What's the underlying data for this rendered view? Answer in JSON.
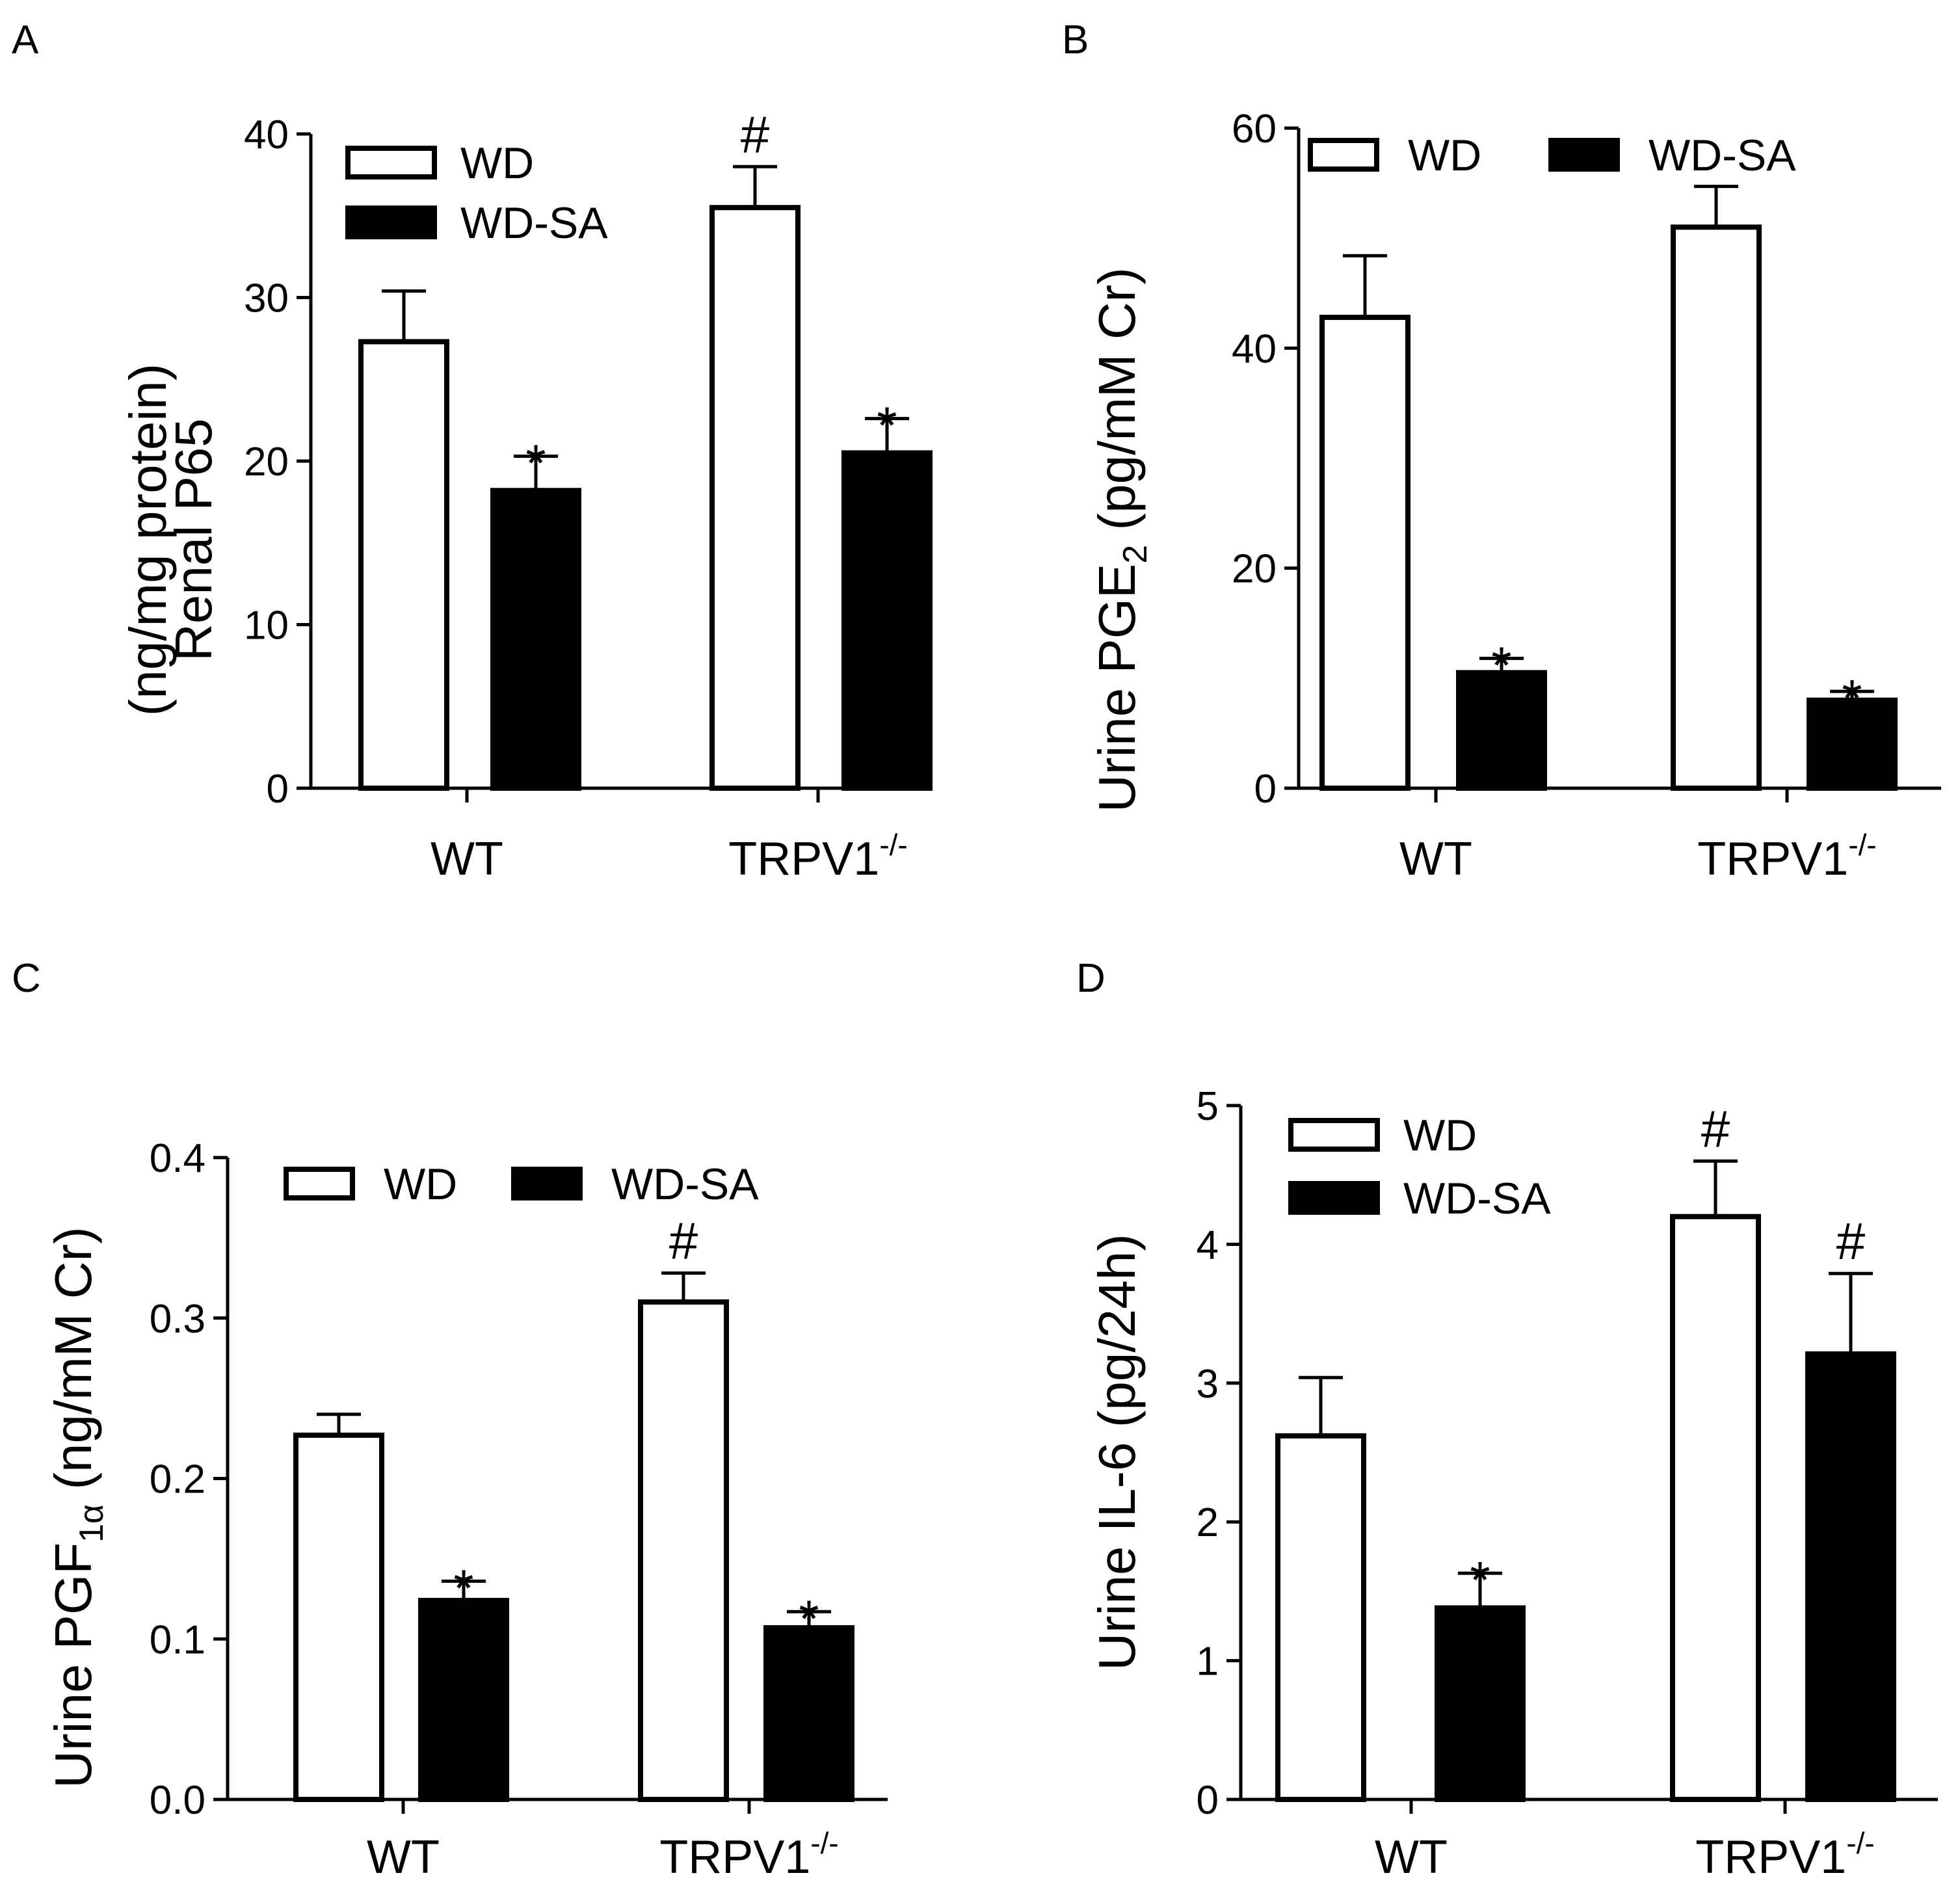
{
  "figure": {
    "panels": [
      {
        "id": "A",
        "letter": "A",
        "ylabel_lines": [
          "Renal P65",
          "(ng/mg protein)"
        ],
        "legend": [
          "WD",
          "WD-SA"
        ],
        "legend_layout": "vertical",
        "categories": [
          "WT",
          "TRPV1"
        ],
        "category_sup": [
          "",
          "-/-"
        ],
        "yticks": [
          "0",
          "10",
          "20",
          "30",
          "40"
        ]
      },
      {
        "id": "B",
        "letter": "B",
        "ylabel_parts": [
          [
            "Urine PGE",
            ""
          ],
          [
            "2",
            "sub"
          ],
          [
            " (pg/mM Cr)",
            ""
          ]
        ],
        "legend": [
          "WD",
          "WD-SA"
        ],
        "legend_layout": "horizontal",
        "categories": [
          "WT",
          "TRPV1"
        ],
        "category_sup": [
          "",
          "-/-"
        ],
        "yticks": [
          "0",
          "20",
          "40",
          "60"
        ]
      },
      {
        "id": "C",
        "letter": "C",
        "ylabel_parts": [
          [
            "Urine PGF",
            ""
          ],
          [
            "1α",
            "sub"
          ],
          [
            " (ng/mM Cr)",
            ""
          ]
        ],
        "legend": [
          "WD",
          "WD-SA"
        ],
        "legend_layout": "horizontal",
        "categories": [
          "WT",
          "TRPV1"
        ],
        "category_sup": [
          "",
          "-/-"
        ],
        "yticks": [
          "0.0",
          "0.1",
          "0.2",
          "0.3",
          "0.4"
        ]
      },
      {
        "id": "D",
        "letter": "D",
        "ylabel_lines": [
          "Urine IL-6 (pg/24h)"
        ],
        "legend": [
          "WD",
          "WD-SA"
        ],
        "legend_layout": "vertical",
        "categories": [
          "WT",
          "TRPV1"
        ],
        "category_sup": [
          "",
          "-/-"
        ],
        "yticks": [
          "0",
          "1",
          "2",
          "3",
          "4",
          "5"
        ]
      }
    ]
  },
  "chart_data": [
    {
      "type": "bar",
      "panel": "A",
      "ylabel": "Renal P65 (ng/mg protein)",
      "categories": [
        "WT",
        "TRPV1-/-"
      ],
      "ylim": [
        0,
        40
      ],
      "series": [
        {
          "name": "WD",
          "fill": "#ffffff",
          "values": [
            27.3,
            35.5
          ],
          "errors": [
            3.1,
            2.5
          ],
          "marks": [
            "",
            "#"
          ]
        },
        {
          "name": "WD-SA",
          "fill": "#000000",
          "values": [
            18.2,
            20.5
          ],
          "errors": [
            2.1,
            2.1
          ],
          "marks": [
            "*",
            "*"
          ]
        }
      ]
    },
    {
      "type": "bar",
      "panel": "B",
      "ylabel": "Urine PGE2 (pg/mM Cr)",
      "categories": [
        "WT",
        "TRPV1-/-"
      ],
      "ylim": [
        0,
        60
      ],
      "series": [
        {
          "name": "WD",
          "fill": "#ffffff",
          "values": [
            42.8,
            51.0
          ],
          "errors": [
            5.6,
            3.7
          ],
          "marks": [
            "",
            ""
          ]
        },
        {
          "name": "WD-SA",
          "fill": "#000000",
          "values": [
            10.5,
            8.0
          ],
          "errors": [
            1.3,
            0.8
          ],
          "marks": [
            "*",
            "*"
          ]
        }
      ]
    },
    {
      "type": "bar",
      "panel": "C",
      "ylabel": "Urine PGF1α (ng/mM Cr)",
      "categories": [
        "WT",
        "TRPV1-/-"
      ],
      "ylim": [
        0,
        0.4
      ],
      "series": [
        {
          "name": "WD",
          "fill": "#ffffff",
          "values": [
            0.227,
            0.31
          ],
          "errors": [
            0.013,
            0.018
          ],
          "marks": [
            "",
            "#"
          ]
        },
        {
          "name": "WD-SA",
          "fill": "#000000",
          "values": [
            0.124,
            0.107
          ],
          "errors": [
            0.012,
            0.01
          ],
          "marks": [
            "*",
            "*"
          ]
        }
      ]
    },
    {
      "type": "bar",
      "panel": "D",
      "ylabel": "Urine IL-6 (pg/24h)",
      "categories": [
        "WT",
        "TRPV1-/-"
      ],
      "ylim": [
        0,
        5
      ],
      "series": [
        {
          "name": "WD",
          "fill": "#ffffff",
          "values": [
            2.62,
            4.2
          ],
          "errors": [
            0.42,
            0.4
          ],
          "marks": [
            "",
            "#"
          ]
        },
        {
          "name": "WD-SA",
          "fill": "#000000",
          "values": [
            1.38,
            3.21
          ],
          "errors": [
            0.25,
            0.58
          ],
          "marks": [
            "*",
            "#"
          ]
        }
      ]
    }
  ]
}
